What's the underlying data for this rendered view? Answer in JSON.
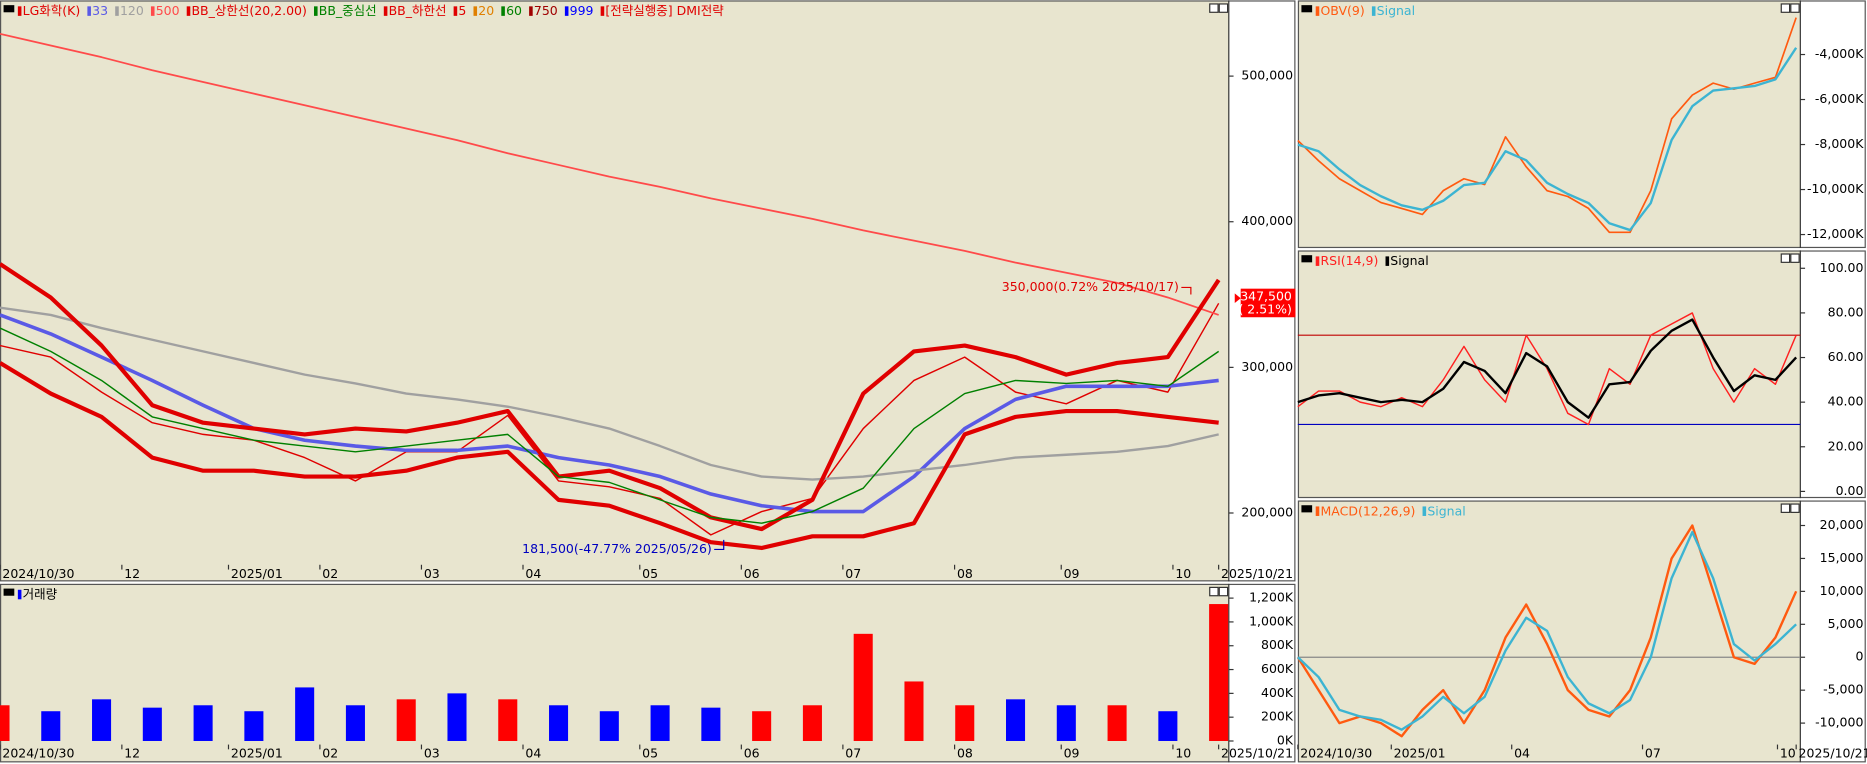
{
  "chart_data": [
    {
      "type": "line",
      "title": "LG화학(K)",
      "x": [
        0,
        10,
        20,
        30,
        40,
        50,
        60,
        70,
        80,
        90,
        100,
        110,
        120,
        130,
        140,
        150,
        160,
        170,
        180,
        190,
        200,
        210,
        220,
        230,
        240
      ],
      "xlim": [
        0,
        242
      ],
      "xticks": [
        {
          "value": 0,
          "label": "2024/10/30"
        },
        {
          "value": 24,
          "label": "12"
        },
        {
          "value": 45,
          "label": "2025/01"
        },
        {
          "value": 63,
          "label": "02"
        },
        {
          "value": 83,
          "label": "03"
        },
        {
          "value": 103,
          "label": "04"
        },
        {
          "value": 126,
          "label": "05"
        },
        {
          "value": 146,
          "label": "06"
        },
        {
          "value": 166,
          "label": "07"
        },
        {
          "value": 188,
          "label": "08"
        },
        {
          "value": 209,
          "label": "09"
        },
        {
          "value": 231,
          "label": "10"
        },
        {
          "value": 240,
          "label": "2025/10/21"
        }
      ],
      "ylim": [
        153000,
        552000
      ],
      "yticks": [
        {
          "value": 200000,
          "label": "200,000"
        },
        {
          "value": 300000,
          "label": "300,000"
        },
        {
          "value": 400000,
          "label": "400,000"
        },
        {
          "value": 500000,
          "label": "500,000"
        }
      ],
      "series": [
        {
          "name": "LG화학(K)",
          "color": "#e00000",
          "values": [
            315000,
            307000,
            283000,
            262000,
            254000,
            250000,
            238000,
            222000,
            242000,
            242000,
            267000,
            222000,
            218000,
            210000,
            185000,
            201000,
            210000,
            258000,
            291000,
            307000,
            283000,
            275000,
            291000,
            283000,
            344000
          ]
        },
        {
          "name": "33",
          "color": "#5a5ae6",
          "values": [
            336000,
            323000,
            307000,
            291000,
            274000,
            258000,
            250000,
            246000,
            243000,
            243000,
            246000,
            238000,
            233000,
            225000,
            213000,
            205000,
            201000,
            201000,
            225000,
            258000,
            278000,
            287000,
            287000,
            287000,
            291000
          ]
        },
        {
          "name": "120",
          "color": "#a0a0a0",
          "values": [
            341000,
            336000,
            327000,
            319000,
            311000,
            303000,
            295000,
            289000,
            282000,
            278000,
            273000,
            266000,
            258000,
            246000,
            233000,
            225000,
            223000,
            225000,
            229000,
            233000,
            238000,
            240000,
            242000,
            246000,
            254000
          ]
        },
        {
          "name": "500",
          "color": "#ff4a4a",
          "values": [
            529000,
            521000,
            513000,
            504000,
            496000,
            488000,
            480000,
            472000,
            464000,
            456000,
            447000,
            439000,
            431000,
            424000,
            416000,
            409000,
            402000,
            394000,
            387000,
            380000,
            372000,
            365000,
            358000,
            348000,
            336000
          ]
        },
        {
          "name": "BB_상한선(20,2.00)",
          "color": "#e00000",
          "values": [
            371000,
            348000,
            315000,
            274000,
            262000,
            258000,
            254000,
            258000,
            256000,
            262000,
            270000,
            225000,
            229000,
            217000,
            197000,
            189000,
            209000,
            282000,
            311000,
            315000,
            307000,
            295000,
            303000,
            307000,
            360000
          ]
        },
        {
          "name": "BB_중심선",
          "color": "#008000",
          "values": [
            327000,
            311000,
            291000,
            266000,
            258000,
            250000,
            246000,
            242000,
            246000,
            250000,
            254000,
            225000,
            221000,
            209000,
            197000,
            193000,
            201000,
            217000,
            258000,
            282000,
            291000,
            289000,
            291000,
            287000,
            311000
          ]
        },
        {
          "name": "BB_하한선",
          "color": "#e00000",
          "values": [
            303000,
            282000,
            266000,
            238000,
            229000,
            229000,
            225000,
            225000,
            229000,
            238000,
            242000,
            209000,
            205000,
            193000,
            180000,
            176000,
            184000,
            184000,
            193000,
            254000,
            266000,
            270000,
            270000,
            266000,
            262000
          ]
        }
      ],
      "other_legend": [
        {
          "name": "5",
          "color": "#e00000"
        },
        {
          "name": "20",
          "color": "#e08000"
        },
        {
          "name": "60",
          "color": "#008000"
        },
        {
          "name": "750",
          "color": "#a00000"
        },
        {
          "name": "999",
          "color": "#0000ff"
        },
        {
          "name": "[전략실행중] DMI전략",
          "color": "#e00000"
        }
      ],
      "annotations": [
        {
          "text": "350,000(0.72% 2025/10/17)",
          "x": 235,
          "y": 350000,
          "color": "#e00000"
        },
        {
          "text": "181,500(-47.77% 2025/05/26)",
          "x": 143,
          "y": 181500,
          "color": "#0000c0"
        }
      ],
      "last_price": {
        "value": 347500,
        "label": "347,500"
      },
      "last_change": "( 2.51%)"
    },
    {
      "type": "bar",
      "title": "거래량",
      "x": [
        0,
        10,
        20,
        30,
        40,
        50,
        60,
        70,
        80,
        90,
        100,
        110,
        120,
        130,
        140,
        150,
        160,
        170,
        180,
        190,
        200,
        210,
        220,
        230,
        240
      ],
      "xlim": [
        0,
        242
      ],
      "xticks": [
        {
          "value": 0,
          "label": "2024/10/30"
        },
        {
          "value": 24,
          "label": "12"
        },
        {
          "value": 45,
          "label": "2025/01"
        },
        {
          "value": 63,
          "label": "02"
        },
        {
          "value": 83,
          "label": "03"
        },
        {
          "value": 103,
          "label": "04"
        },
        {
          "value": 126,
          "label": "05"
        },
        {
          "value": 146,
          "label": "06"
        },
        {
          "value": 166,
          "label": "07"
        },
        {
          "value": 188,
          "label": "08"
        },
        {
          "value": 209,
          "label": "09"
        },
        {
          "value": 231,
          "label": "10"
        },
        {
          "value": 240,
          "label": "2025/10/21"
        }
      ],
      "ylim": [
        0,
        1300000
      ],
      "yticks": [
        {
          "value": 0,
          "label": "0K"
        },
        {
          "value": 200000,
          "label": "200K"
        },
        {
          "value": 400000,
          "label": "400K"
        },
        {
          "value": 600000,
          "label": "600K"
        },
        {
          "value": 800000,
          "label": "800K"
        },
        {
          "value": 1000000,
          "label": "1,000K"
        },
        {
          "value": 1200000,
          "label": "1,200K"
        }
      ],
      "values": [
        300000,
        250000,
        350000,
        280000,
        300000,
        250000,
        450000,
        300000,
        350000,
        400000,
        350000,
        300000,
        250000,
        300000,
        280000,
        250000,
        300000,
        900000,
        500000,
        300000,
        350000,
        300000,
        300000,
        250000,
        1150000
      ],
      "colors": [
        "#ff0000",
        "#0000ff",
        "#0000ff",
        "#0000ff",
        "#0000ff",
        "#0000ff",
        "#0000ff",
        "#0000ff",
        "#ff0000",
        "#0000ff",
        "#ff0000",
        "#0000ff",
        "#0000ff",
        "#0000ff",
        "#0000ff",
        "#ff0000",
        "#ff0000",
        "#ff0000",
        "#ff0000",
        "#ff0000",
        "#0000ff",
        "#0000ff",
        "#ff0000",
        "#0000ff",
        "#ff0000"
      ]
    },
    {
      "type": "line",
      "title": "OBV(9)",
      "x": [
        0,
        10,
        20,
        30,
        40,
        50,
        60,
        70,
        80,
        90,
        100,
        110,
        120,
        130,
        140,
        150,
        160,
        170,
        180,
        190,
        200,
        210,
        220,
        230,
        240
      ],
      "xlim": [
        0,
        242
      ],
      "ylim": [
        -12600000,
        -1700000
      ],
      "yticks": [
        {
          "value": -12000000,
          "label": "-12,000K"
        },
        {
          "value": -10000000,
          "label": "-10,000K"
        },
        {
          "value": -8000000,
          "label": "-8,000K"
        },
        {
          "value": -6000000,
          "label": "-6,000K"
        },
        {
          "value": -4000000,
          "label": "-4,000K"
        }
      ],
      "series": [
        {
          "name": "OBV(9)",
          "color": "#ff5a10",
          "values": [
            -7820000,
            -8720000,
            -9520000,
            -10050000,
            -10580000,
            -10840000,
            -11110000,
            -10050000,
            -9520000,
            -9780000,
            -7660000,
            -8990000,
            -10050000,
            -10310000,
            -10840000,
            -11900000,
            -11900000,
            -10050000,
            -6860000,
            -5800000,
            -5270000,
            -5540000,
            -5270000,
            -5010000,
            -2360000
          ]
        },
        {
          "name": "Signal",
          "color": "#3cb4d2",
          "values": [
            -8000000,
            -8300000,
            -9100000,
            -9800000,
            -10300000,
            -10700000,
            -10900000,
            -10500000,
            -9800000,
            -9700000,
            -8300000,
            -8700000,
            -9700000,
            -10200000,
            -10600000,
            -11500000,
            -11800000,
            -10600000,
            -7800000,
            -6300000,
            -5600000,
            -5500000,
            -5400000,
            -5100000,
            -3700000
          ]
        }
      ]
    },
    {
      "type": "line",
      "title": "RSI(14,9)",
      "x": [
        0,
        10,
        20,
        30,
        40,
        50,
        60,
        70,
        80,
        90,
        100,
        110,
        120,
        130,
        140,
        150,
        160,
        170,
        180,
        190,
        200,
        210,
        220,
        230,
        240
      ],
      "xlim": [
        0,
        242
      ],
      "ylim": [
        -3,
        108
      ],
      "yticks": [
        {
          "value": 0,
          "label": "0.00"
        },
        {
          "value": 20,
          "label": "20.00"
        },
        {
          "value": 40,
          "label": "40.00"
        },
        {
          "value": 60,
          "label": "60.00"
        },
        {
          "value": 80,
          "label": "80.00"
        },
        {
          "value": 100,
          "label": "100.00"
        }
      ],
      "hlines": [
        {
          "value": 70,
          "color": "#c00000"
        },
        {
          "value": 30,
          "color": "#0000c0"
        }
      ],
      "series": [
        {
          "name": "RSI(14,9)",
          "color": "#ff2020",
          "values": [
            38,
            45,
            45,
            40,
            38,
            42,
            38,
            50,
            65,
            50,
            40,
            70,
            55,
            35,
            30,
            55,
            48,
            70,
            75,
            80,
            55,
            40,
            55,
            48,
            70
          ]
        },
        {
          "name": "Signal",
          "color": "#000000",
          "values": [
            40,
            43,
            44,
            42,
            40,
            41,
            40,
            46,
            58,
            54,
            44,
            62,
            56,
            40,
            33,
            48,
            49,
            63,
            72,
            77,
            60,
            45,
            52,
            50,
            60
          ]
        }
      ]
    },
    {
      "type": "line",
      "title": "MACD(12,26,9)",
      "x": [
        0,
        10,
        20,
        30,
        40,
        50,
        60,
        70,
        80,
        90,
        100,
        110,
        120,
        130,
        140,
        150,
        160,
        170,
        180,
        190,
        200,
        210,
        220,
        230,
        240
      ],
      "xlim": [
        0,
        242
      ],
      "xticks": [
        {
          "value": 0,
          "label": "2024/10/30"
        },
        {
          "value": 45,
          "label": "2025/01"
        },
        {
          "value": 103,
          "label": "04"
        },
        {
          "value": 166,
          "label": "07"
        },
        {
          "value": 231,
          "label": "10"
        },
        {
          "value": 240,
          "label": "2025/10/21"
        }
      ],
      "ylim": [
        -13800,
        23800
      ],
      "yticks": [
        {
          "value": -10000,
          "label": "-10,000"
        },
        {
          "value": -5000,
          "label": "-5,000"
        },
        0,
        {
          "value": 5000,
          "label": "5,000"
        },
        {
          "value": 10000,
          "label": "10,000"
        },
        {
          "value": 15000,
          "label": "15,000"
        },
        {
          "value": 20000,
          "label": "20,000"
        }
      ],
      "hlines": [
        {
          "value": 0,
          "color": "#888888"
        }
      ],
      "series": [
        {
          "name": "MACD(12,26,9)",
          "color": "#ff5a10",
          "values": [
            0,
            -5000,
            -10000,
            -9000,
            -10000,
            -12000,
            -8000,
            -5000,
            -10000,
            -5000,
            3000,
            8000,
            2000,
            -5000,
            -8000,
            -9000,
            -5000,
            3000,
            15000,
            20000,
            10000,
            0,
            -1000,
            3000,
            10000
          ]
        },
        {
          "name": "Signal",
          "color": "#3cb4d2",
          "values": [
            0,
            -3000,
            -8000,
            -9000,
            -9500,
            -11000,
            -9000,
            -6000,
            -8500,
            -6000,
            1000,
            6000,
            4000,
            -3000,
            -7000,
            -8500,
            -6500,
            0,
            12000,
            19000,
            12000,
            2000,
            -500,
            2000,
            5000
          ]
        }
      ]
    }
  ]
}
